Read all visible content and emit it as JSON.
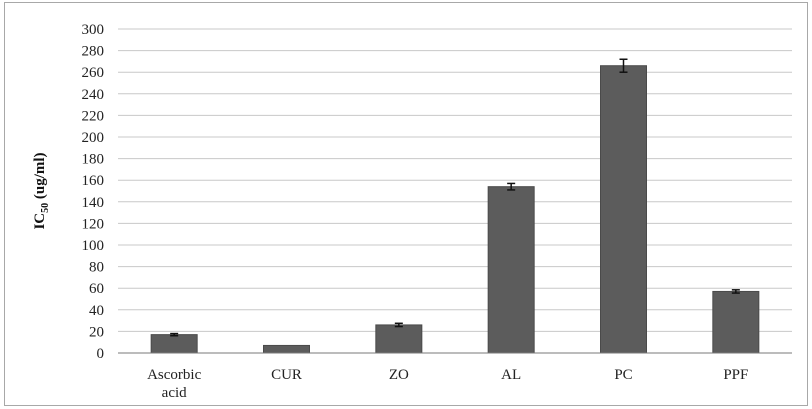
{
  "chart_data": {
    "type": "bar",
    "title": "",
    "xlabel": "",
    "ylabel": {
      "main": "IC",
      "subscript": "50",
      "unit": " (ug/ml)"
    },
    "ylim": [
      0,
      300
    ],
    "ytick_step": 20,
    "yticks": [
      "0",
      "20",
      "40",
      "60",
      "80",
      "100",
      "120",
      "140",
      "160",
      "180",
      "200",
      "220",
      "240",
      "260",
      "280",
      "300"
    ],
    "grid": true,
    "legend": "none",
    "categories": [
      [
        "Ascorbic",
        "acid"
      ],
      [
        "CUR"
      ],
      [
        "ZO"
      ],
      [
        "AL"
      ],
      [
        "PC"
      ],
      [
        "PPF"
      ]
    ],
    "values": [
      17,
      7,
      26,
      154,
      266,
      57
    ],
    "errors": [
      1,
      0,
      1.5,
      3,
      6,
      1.5
    ],
    "colors": {
      "bar": "#5c5c5c",
      "grid": "#c8c8c8",
      "axis": "#7a7a7a"
    }
  }
}
